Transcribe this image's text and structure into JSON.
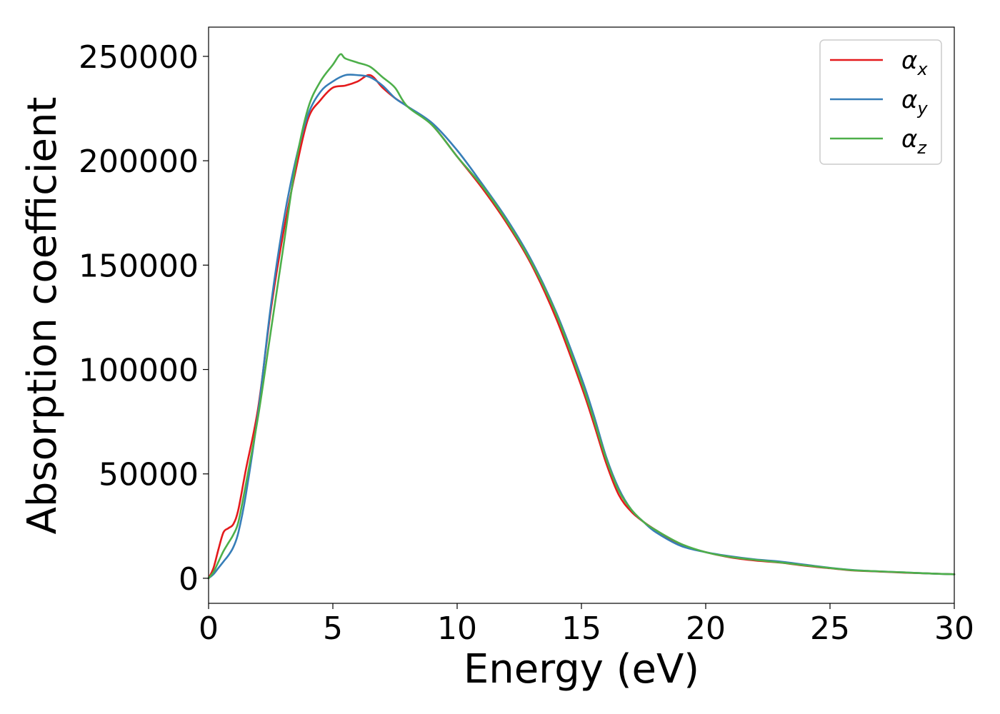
{
  "chart_data": {
    "type": "line",
    "title": "",
    "xlabel": "Energy (eV)",
    "ylabel": "Absorption coefficient",
    "xlim": [
      0,
      30
    ],
    "ylim": [
      -12000,
      264000
    ],
    "xticks": [
      "0",
      "5",
      "10",
      "15",
      "20",
      "25",
      "30"
    ],
    "yticks": [
      "0",
      "50000",
      "100000",
      "150000",
      "200000",
      "250000"
    ],
    "xtick_values": [
      0,
      5,
      10,
      15,
      20,
      25,
      30
    ],
    "ytick_values": [
      0,
      50000,
      100000,
      150000,
      200000,
      250000
    ],
    "grid": false,
    "legend_position": "top-right",
    "series": [
      {
        "name": "α",
        "name_sub": "x",
        "color": "#e41a1c",
        "x": [
          0,
          0.2,
          0.4,
          0.6,
          0.8,
          1.0,
          1.2,
          1.5,
          2.0,
          2.5,
          3.0,
          3.5,
          4.0,
          4.5,
          5.0,
          5.5,
          6.0,
          6.5,
          7.0,
          7.5,
          8.0,
          9.0,
          10.0,
          11.0,
          12.0,
          13.0,
          14.0,
          15.0,
          15.5,
          16.0,
          16.5,
          17.0,
          17.5,
          18.0,
          19.0,
          20.0,
          21.0,
          22.0,
          23.0,
          24.0,
          25.0,
          26.0,
          27.0,
          28.0,
          29.0,
          30.0
        ],
        "y": [
          0,
          5000,
          14000,
          22000,
          24000,
          26000,
          33000,
          52000,
          82000,
          128000,
          165000,
          195000,
          220000,
          229000,
          235000,
          236000,
          238000,
          241000,
          235000,
          230000,
          226000,
          217000,
          202000,
          187000,
          170000,
          150000,
          124000,
          92000,
          74000,
          55000,
          40000,
          32000,
          27000,
          23000,
          16000,
          12500,
          10000,
          8500,
          7500,
          6000,
          4800,
          3700,
          3200,
          2700,
          2300,
          1900
        ]
      },
      {
        "name": "α",
        "name_sub": "y",
        "color": "#377eb8",
        "x": [
          0,
          0.2,
          0.4,
          0.6,
          0.8,
          1.0,
          1.2,
          1.5,
          2.0,
          2.5,
          3.0,
          3.5,
          4.0,
          4.5,
          5.0,
          5.5,
          6.0,
          6.5,
          7.0,
          7.5,
          8.0,
          9.0,
          10.0,
          11.0,
          12.0,
          13.0,
          14.0,
          15.0,
          15.5,
          16.0,
          16.5,
          17.0,
          17.5,
          18.0,
          19.0,
          20.0,
          21.0,
          22.0,
          23.0,
          24.0,
          25.0,
          26.0,
          27.0,
          28.0,
          29.0,
          30.0
        ],
        "y": [
          0,
          2000,
          5000,
          8000,
          11000,
          15000,
          22000,
          40000,
          80000,
          130000,
          170000,
          200000,
          222000,
          233000,
          238000,
          241000,
          241000,
          240000,
          236000,
          230000,
          226000,
          218000,
          205000,
          189000,
          172000,
          152000,
          127000,
          96000,
          78000,
          58000,
          43000,
          33000,
          27000,
          22000,
          15500,
          12500,
          10500,
          9000,
          8000,
          6500,
          5000,
          3900,
          3300,
          2800,
          2300,
          1900
        ]
      },
      {
        "name": "α",
        "name_sub": "z",
        "color": "#4daf4a",
        "x": [
          0,
          0.2,
          0.4,
          0.6,
          0.8,
          1.0,
          1.2,
          1.5,
          2.0,
          2.5,
          3.0,
          3.5,
          4.0,
          4.5,
          5.0,
          5.3,
          5.5,
          6.0,
          6.5,
          7.0,
          7.5,
          8.0,
          9.0,
          10.0,
          11.0,
          12.0,
          13.0,
          14.0,
          15.0,
          15.5,
          16.0,
          16.5,
          17.0,
          17.5,
          18.0,
          19.0,
          20.0,
          21.0,
          22.0,
          23.0,
          24.0,
          25.0,
          26.0,
          27.0,
          28.0,
          29.0,
          30.0
        ],
        "y": [
          0,
          3000,
          8000,
          13000,
          17000,
          21000,
          27000,
          45000,
          78000,
          118000,
          158000,
          198000,
          225000,
          238000,
          246000,
          251000,
          249000,
          247000,
          245000,
          240000,
          235000,
          226000,
          217000,
          202000,
          188000,
          171000,
          151000,
          126000,
          94000,
          76000,
          57000,
          42000,
          33000,
          27000,
          23000,
          16500,
          12500,
          10200,
          8800,
          7600,
          6200,
          4900,
          3800,
          3300,
          2800,
          2300,
          1900
        ]
      }
    ]
  }
}
